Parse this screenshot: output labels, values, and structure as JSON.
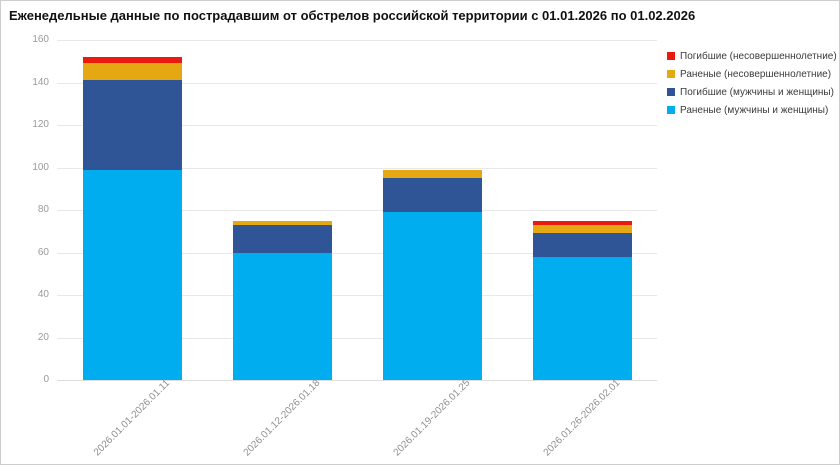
{
  "title": "Еженедельные данные по пострадавшим от обстрелов российской территории с 01.01.2026 по 01.02.2026",
  "chart_data": {
    "type": "bar",
    "stacked": true,
    "title": "Еженедельные данные по пострадавшим от обстрелов российской территории с 01.01.2026 по 01.02.2026",
    "categories": [
      "2026.01.01-2026.01.11",
      "2026.01.12-2026.01.18",
      "2026.01.19-2026.01.25",
      "2026.01.26-2026.02.01"
    ],
    "series": [
      {
        "name": "Раненые (мужчины и женщины)",
        "color": "#00ADEF",
        "values": [
          99,
          60,
          79,
          58
        ]
      },
      {
        "name": "Погибшие (мужчины и женщины)",
        "color": "#2F5596",
        "values": [
          42,
          13,
          16,
          11
        ]
      },
      {
        "name": "Раненые (несовершеннолетние)",
        "color": "#E5A812",
        "values": [
          8,
          2,
          4,
          4
        ]
      },
      {
        "name": "Погибшие (несовершеннолетние)",
        "color": "#EA1B0D",
        "values": [
          3,
          0,
          0,
          2
        ]
      }
    ],
    "totals": [
      152,
      75,
      99,
      75
    ],
    "xlabel": "",
    "ylabel": "",
    "ylim": [
      0,
      160
    ],
    "yticks": [
      0,
      20,
      40,
      60,
      80,
      100,
      120,
      140,
      160
    ],
    "grid": true,
    "legend_position": "top-right",
    "legend_order_top_to_bottom": [
      "Погибшие (несовершеннолетние)",
      "Раненые (несовершеннолетние)",
      "Погибшие (мужчины и женщины)",
      "Раненые (мужчины и женщины)"
    ]
  },
  "colors": {
    "background": "#ffffff",
    "gridline": "#e8e8e8",
    "tick_text": "#9a9a9a",
    "title_text": "#111111",
    "legend_text": "#3b3b3b"
  }
}
